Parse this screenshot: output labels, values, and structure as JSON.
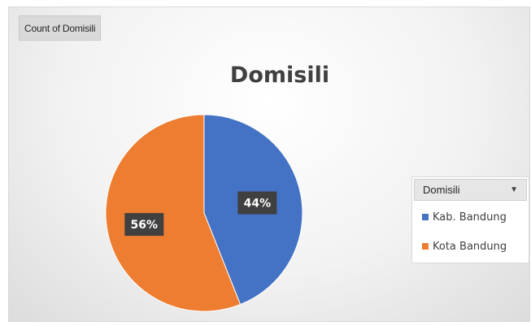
{
  "pivot_field_button": "Count of Domisili",
  "legend_field": "Domisili",
  "legend_dropdown_icon": "dropdown-arrow-icon",
  "chart_data": {
    "type": "pie",
    "title": "Domisili",
    "categories": [
      "Kab. Bandung",
      "Kota Bandung"
    ],
    "values": [
      44,
      56
    ],
    "labels": [
      "44%",
      "56%"
    ],
    "colors": [
      "#4472C4",
      "#ED7D31"
    ],
    "legend_position": "right"
  }
}
